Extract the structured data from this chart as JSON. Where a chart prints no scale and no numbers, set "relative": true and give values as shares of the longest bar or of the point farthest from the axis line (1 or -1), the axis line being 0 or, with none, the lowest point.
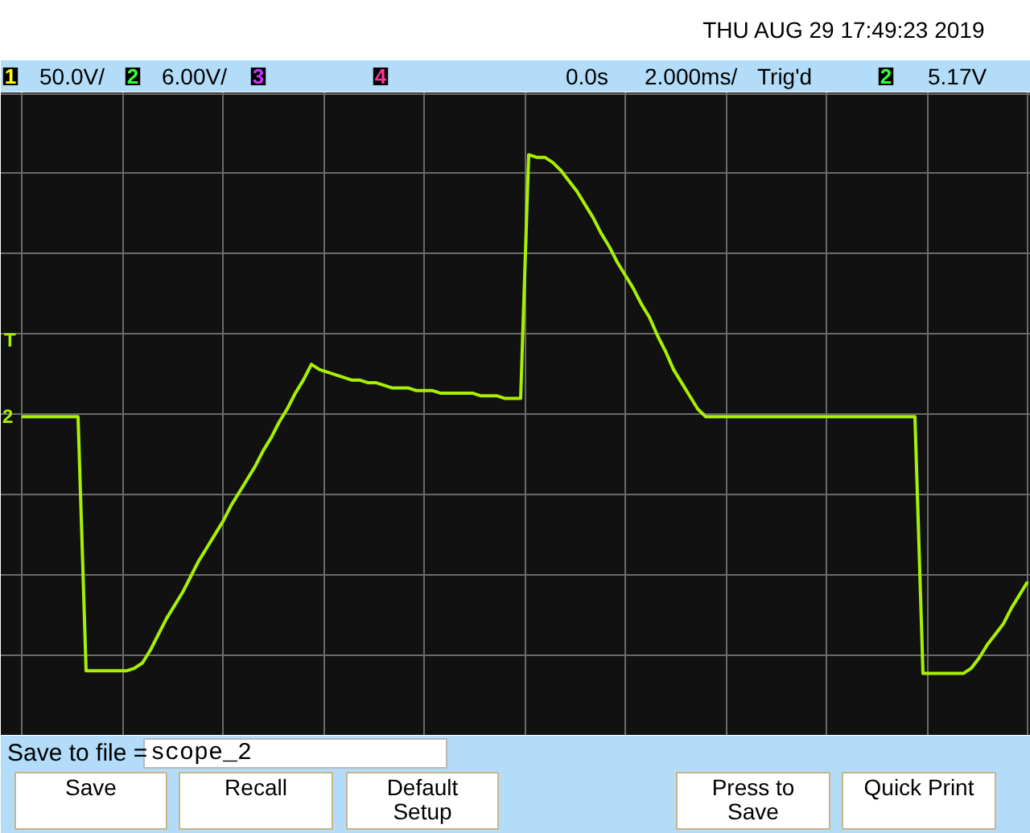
{
  "chart_data": {
    "type": "line",
    "relative": true,
    "grid": true,
    "categories": [
      null,
      null,
      null,
      null,
      null,
      null,
      null,
      null,
      null,
      null,
      null,
      null,
      null,
      null,
      null,
      null,
      null,
      null,
      null,
      null,
      null,
      null,
      null,
      null,
      null,
      null,
      null,
      null,
      null,
      null,
      null,
      null,
      null,
      null,
      null,
      null,
      null,
      null,
      null,
      null,
      null,
      null,
      null,
      null,
      null,
      null,
      null,
      null,
      null,
      null,
      null,
      null,
      null,
      null,
      null,
      null,
      null,
      null,
      null,
      null,
      null,
      null,
      null,
      null,
      null,
      null,
      null,
      null,
      null,
      null,
      null,
      null,
      null,
      null,
      null,
      null,
      null,
      null,
      null,
      null,
      null,
      null,
      null,
      null,
      null,
      null,
      null,
      null,
      null,
      null,
      null,
      null,
      null,
      null,
      null,
      null,
      null,
      null,
      null,
      null,
      null,
      null,
      null,
      null,
      null,
      null,
      null,
      null,
      null,
      null,
      null,
      null,
      null,
      null,
      null,
      null,
      null,
      null,
      null,
      null,
      null,
      null,
      null,
      null,
      null,
      null
    ],
    "series": [
      {
        "color": "#a8f000",
        "values": [
          0,
          0,
          0,
          0,
          0,
          0,
          0,
          0,
          -0.97,
          -0.97,
          -0.97,
          -0.97,
          -0.97,
          -0.97,
          -0.96,
          -0.94,
          -0.89,
          -0.83,
          -0.77,
          -0.72,
          -0.67,
          -0.61,
          -0.55,
          -0.5,
          -0.45,
          -0.4,
          -0.34,
          -0.29,
          -0.24,
          -0.19,
          -0.13,
          -0.08,
          -0.02,
          0.03,
          0.09,
          0.14,
          0.2,
          0.18,
          0.17,
          0.16,
          0.15,
          0.14,
          0.14,
          0.13,
          0.13,
          0.12,
          0.11,
          0.11,
          0.11,
          0.1,
          0.1,
          0.1,
          0.09,
          0.09,
          0.09,
          0.09,
          0.09,
          0.08,
          0.08,
          0.08,
          0.07,
          0.07,
          0.07,
          1.0,
          0.99,
          0.99,
          0.97,
          0.94,
          0.9,
          0.86,
          0.81,
          0.76,
          0.7,
          0.65,
          0.59,
          0.54,
          0.49,
          0.43,
          0.38,
          0.31,
          0.25,
          0.18,
          0.13,
          0.08,
          0.03,
          0,
          0,
          0,
          0,
          0,
          0,
          0,
          0,
          0,
          0,
          0,
          0,
          0,
          0,
          0,
          0,
          0,
          0,
          0,
          0,
          0,
          0,
          0,
          0,
          0,
          0,
          0,
          -0.98,
          -0.98,
          -0.98,
          -0.98,
          -0.98,
          -0.98,
          -0.96,
          -0.92,
          -0.87,
          -0.83,
          -0.79,
          -0.73,
          -0.68,
          -0.63
        ]
      }
    ],
    "annotations": [
      "THU AUG 29 17:49:23 2019",
      "1",
      "50.0V/",
      "2",
      "6.00V/",
      "3",
      "4",
      "0.0s",
      "2.000ms/",
      "Trig'd",
      "2",
      "5.17V",
      "T",
      "2",
      "Save to file =",
      "scope_2",
      "Save",
      "Recall",
      "Default Setup",
      "Press to Save",
      "Quick Print"
    ]
  }
}
